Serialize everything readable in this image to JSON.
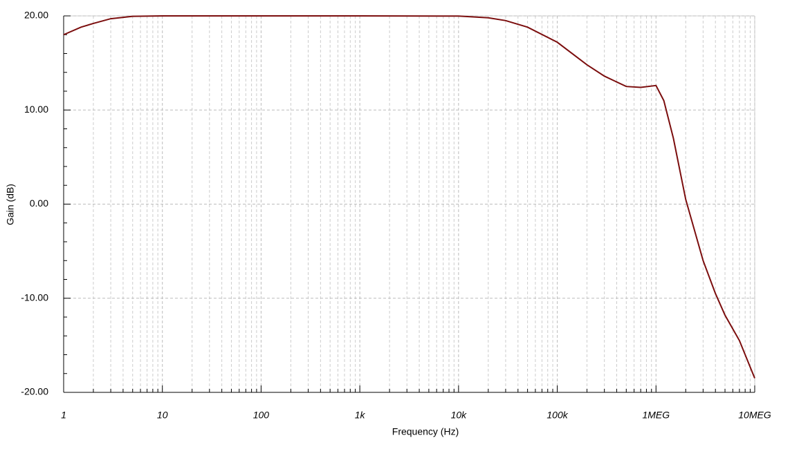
{
  "chart_data": {
    "type": "line",
    "xlabel": "Frequency (Hz)",
    "ylabel": "Gain (dB)",
    "log_x": true,
    "grid": true,
    "xlim": [
      1,
      10000000
    ],
    "ylim": [
      -20,
      20
    ],
    "xticks": [
      1,
      10,
      100,
      {
        "value": 1000,
        "label": "1k"
      },
      {
        "value": 10000,
        "label": "10k"
      },
      {
        "value": 100000,
        "label": "100k"
      },
      {
        "value": 1000000,
        "label": "1MEG"
      },
      {
        "value": 10000000,
        "label": "10MEG"
      }
    ],
    "yticks": [
      {
        "value": 20,
        "label": "20.00"
      },
      {
        "value": 10,
        "label": "10.00"
      },
      {
        "value": 0,
        "label": "0.00"
      },
      {
        "value": -10,
        "label": "-10.00"
      },
      {
        "value": -20,
        "label": "-20.00"
      }
    ],
    "series": [
      {
        "color": "#7b0d0d",
        "x": [
          1,
          1.5,
          2,
          3,
          5,
          10,
          1000,
          10000,
          20000,
          30000,
          50000,
          100000,
          200000,
          300000,
          500000,
          700000,
          1000000,
          1200000,
          1500000,
          2000000,
          3000000,
          4000000,
          5000000,
          7000000,
          10000000
        ],
        "values": [
          18,
          18.8,
          19.2,
          19.7,
          19.95,
          20,
          20,
          19.98,
          19.8,
          19.5,
          18.8,
          17.2,
          14.8,
          13.6,
          12.5,
          12.4,
          12.6,
          11,
          7,
          0.5,
          -6,
          -9.5,
          -11.8,
          -14.5,
          -18.5
        ]
      }
    ]
  }
}
